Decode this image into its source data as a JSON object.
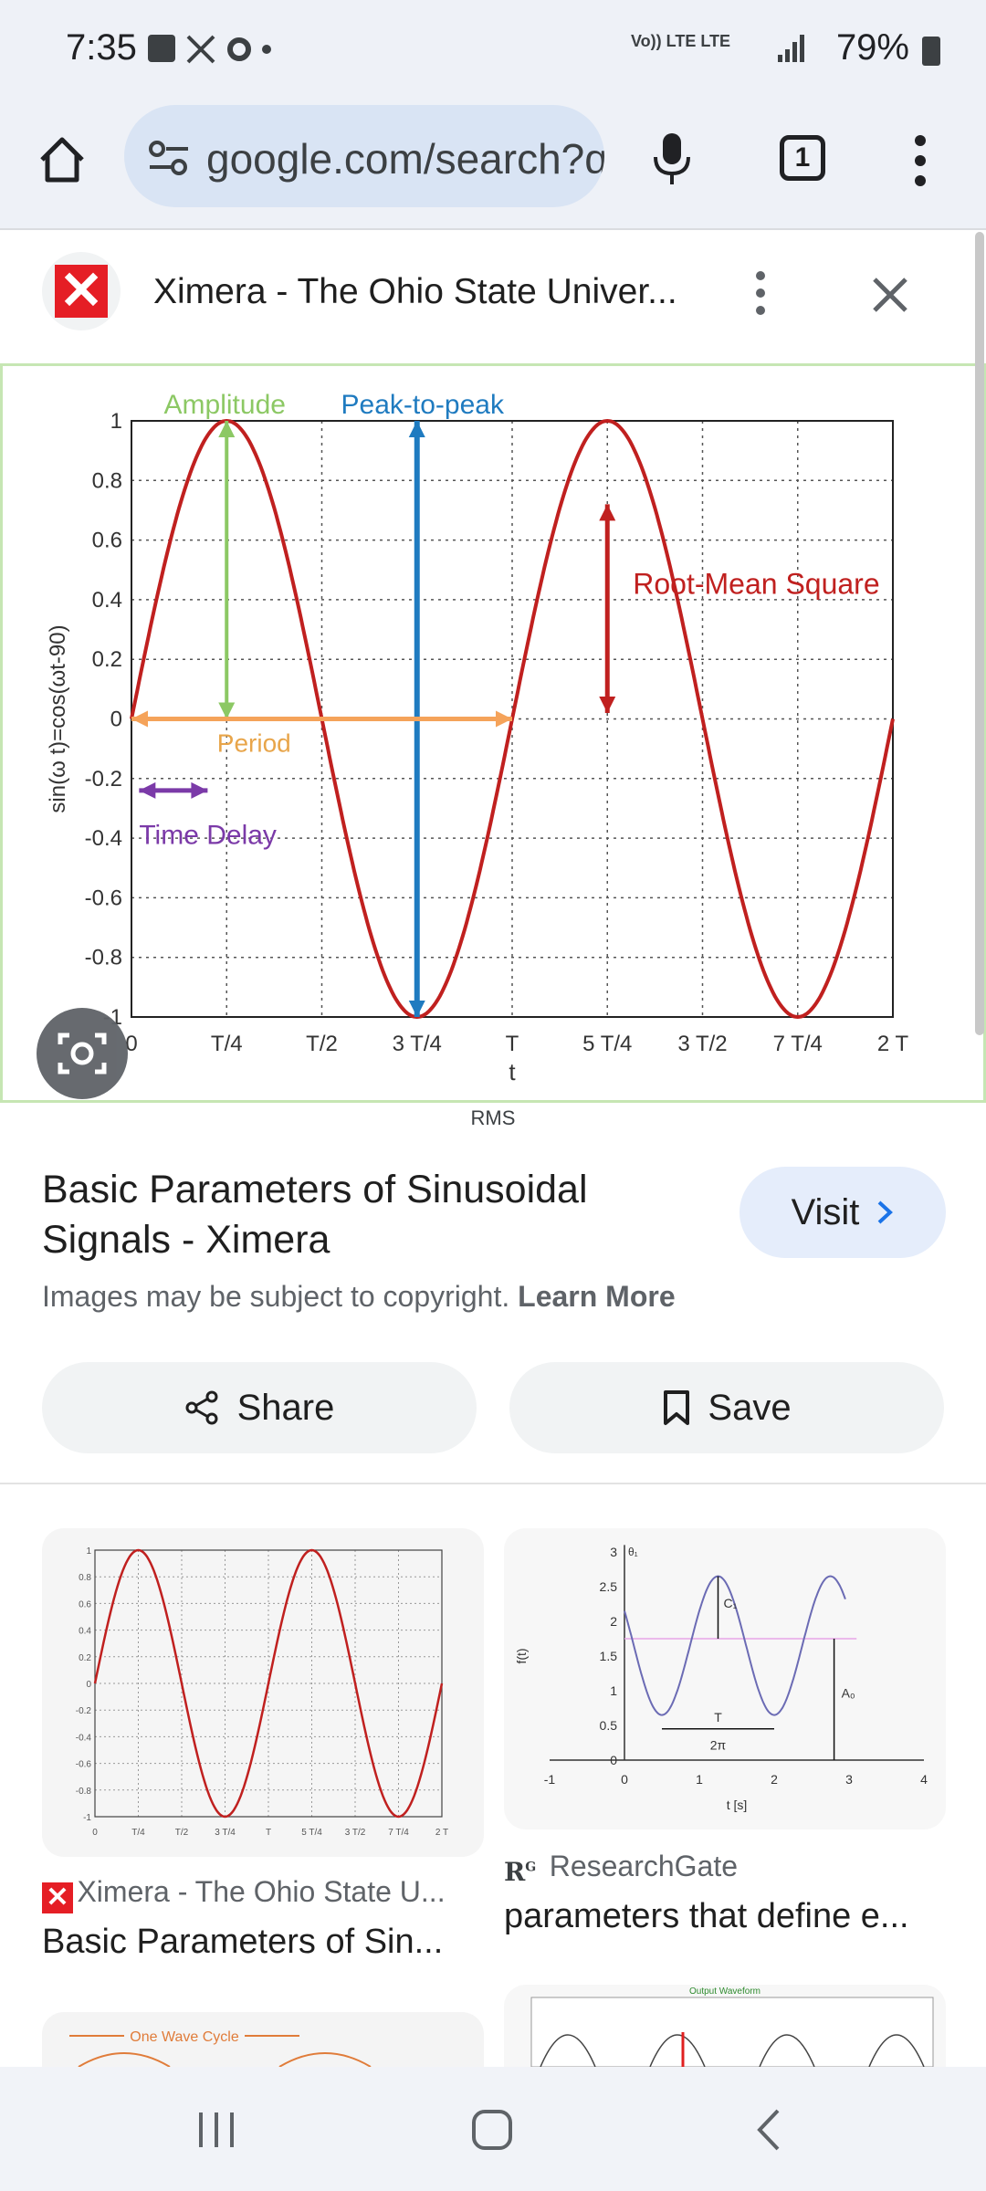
{
  "status_bar": {
    "time": "7:35",
    "network": "Vo)) LTE  LTE",
    "battery": "79%"
  },
  "browser": {
    "url": "google.com/search?q=sinusoidal",
    "tab_count": "1"
  },
  "result": {
    "site_title": "Ximera - The Ohio State Univer...",
    "image_caption": "RMS",
    "title": "Basic Parameters of Sinusoidal Signals - Ximera",
    "visit_label": "Visit",
    "copyright_text": "Images may be subject to copyright.",
    "learn_more": "Learn More",
    "share_label": "Share",
    "save_label": "Save"
  },
  "chart_data": {
    "type": "line",
    "series": [
      {
        "values_desc": "y = sin(2πt/T)",
        "x": [
          0,
          0.25,
          0.5,
          0.75,
          1,
          1.25,
          1.5,
          1.75,
          2
        ],
        "y": [
          0,
          1,
          0,
          -1,
          0,
          1,
          0,
          -1,
          0
        ]
      }
    ],
    "xlabel": "t",
    "ylabel": "sin(ω t)=cos(ωt-90)",
    "x_ticks": [
      "0",
      "T/4",
      "T/2",
      "3 T/4",
      "T",
      "5 T/4",
      "3 T/2",
      "7 T/4",
      "2 T"
    ],
    "y_ticks": [
      "1",
      "0.8",
      "0.6",
      "0.4",
      "0.2",
      "0",
      "-0.2",
      "-0.4",
      "-0.6",
      "-0.8",
      "-1"
    ],
    "ylim": [
      -1,
      1
    ],
    "grid": true,
    "annotations": {
      "amplitude": "Amplitude",
      "peak_to_peak": "Peak-to-peak",
      "rms": "Root-Mean Square",
      "period": "Period",
      "time_delay": "Time Delay"
    },
    "colors": {
      "curve": "#c0201f",
      "amplitude": "#8cc864",
      "peak": "#1f7bc0",
      "rms": "#c0201f",
      "period": "#f5a35a",
      "delay": "#7b3aa8"
    }
  },
  "related": [
    {
      "source": "Ximera - The Ohio State U...",
      "title": "Basic Parameters of Sin..."
    },
    {
      "source": "ResearchGate",
      "title": "parameters that define e..."
    }
  ],
  "thumb2": {
    "y_ticks": [
      "3",
      "2.5",
      "2",
      "1.5",
      "1",
      "0.5",
      "0"
    ],
    "x_ticks": [
      "-1",
      "0",
      "1",
      "2",
      "3",
      "4"
    ],
    "xlabel": "t [s]",
    "ylabel": "f(t)",
    "labels": [
      "C₁",
      "A₀",
      "T",
      "2π",
      "θ₁"
    ]
  },
  "thumb3": {
    "label": "One Wave Cycle"
  },
  "thumb4": {
    "label": "Output Waveform"
  }
}
